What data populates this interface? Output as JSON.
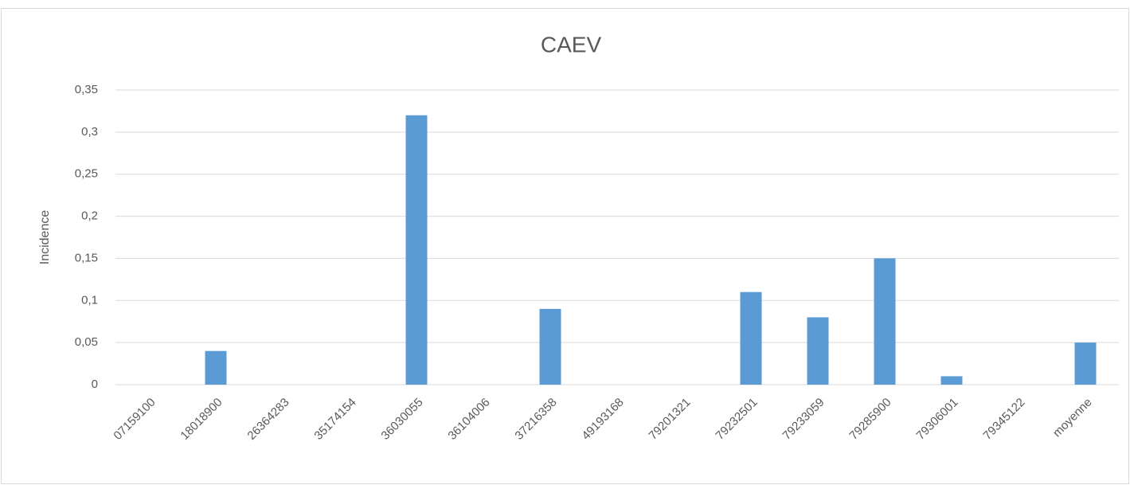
{
  "chart_data": {
    "type": "bar",
    "title": "CAEV",
    "y_label": "Incidence",
    "categories": [
      "07159100",
      "18018900",
      "26364283",
      "35174154",
      "36030055",
      "36104006",
      "37216358",
      "49193168",
      "79201321",
      "79232501",
      "79233059",
      "79285900",
      "79306001",
      "79345122",
      "moyenne"
    ],
    "values": [
      0,
      0.04,
      0,
      0,
      0.32,
      0,
      0.09,
      0,
      0,
      0.11,
      0.08,
      0.15,
      0.01,
      0,
      0.05
    ],
    "color": "#5b9bd5",
    "ylim": [
      0,
      0.35
    ],
    "yticks": [
      0,
      {
        "value": 0.05,
        "label": "0,05"
      },
      {
        "value": 0.1,
        "label": "0,1"
      },
      {
        "value": 0.15,
        "label": "0,15"
      },
      {
        "value": 0.2,
        "label": "0,2"
      },
      {
        "value": 0.25,
        "label": "0,25"
      },
      {
        "value": 0.3,
        "label": "0,3"
      },
      {
        "value": 0.35,
        "label": "0,35"
      }
    ],
    "grid": true
  }
}
